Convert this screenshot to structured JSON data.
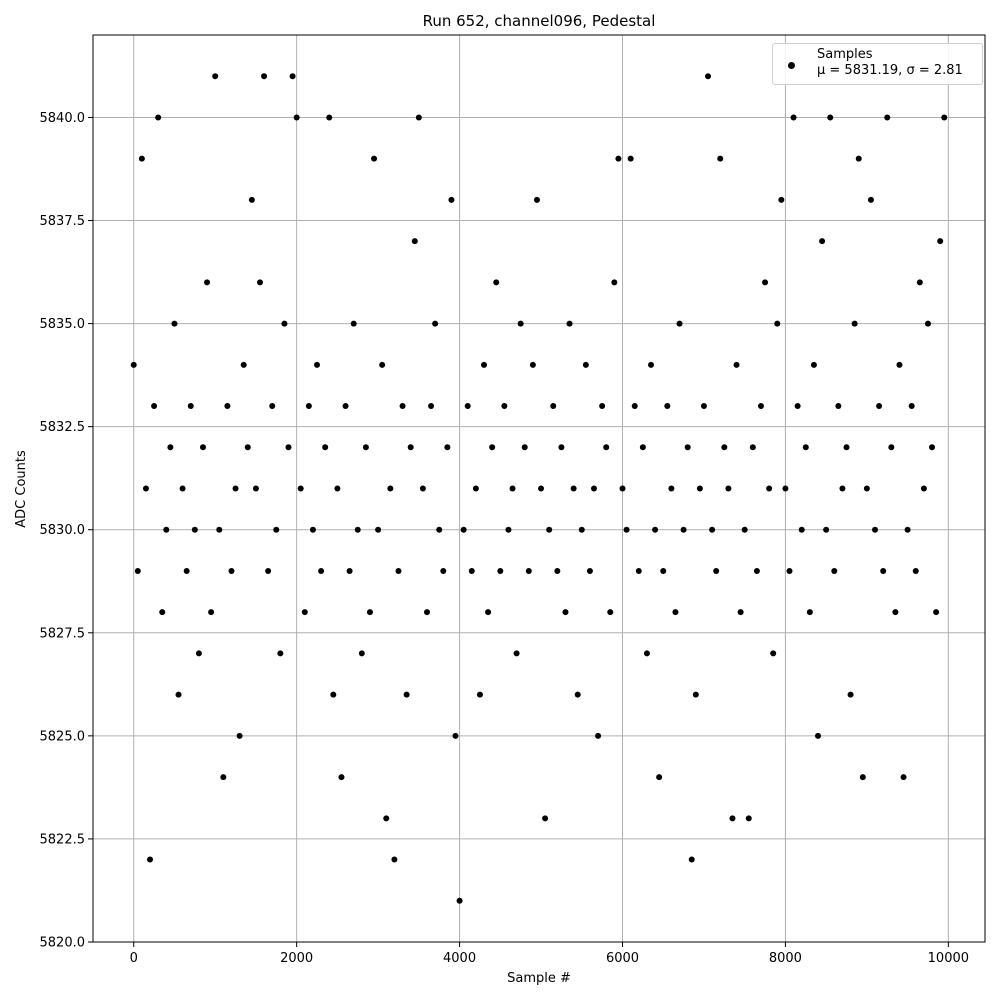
{
  "chart_data": {
    "type": "scatter",
    "title": "Run 652, channel096, Pedestal",
    "xlabel": "Sample #",
    "ylabel": "ADC Counts",
    "xlim": [
      -500,
      10450
    ],
    "xticks": [
      0,
      2000,
      4000,
      6000,
      8000,
      10000
    ],
    "ylim": [
      5820,
      5842
    ],
    "yticks": [
      {
        "value": 5820,
        "label": "5820.0"
      },
      5822.5,
      {
        "value": 5825,
        "label": "5825.0"
      },
      5827.5,
      {
        "value": 5830,
        "label": "5830.0"
      },
      5832.5,
      {
        "value": 5835,
        "label": "5835.0"
      },
      5837.5,
      {
        "value": 5840,
        "label": "5840.0"
      }
    ],
    "grid": true,
    "legend": "upper right",
    "series": [
      {
        "name": "Samples\nμ = 5831.19, σ = 2.81",
        "color": "#000000",
        "x": [
          0,
          50,
          100,
          150,
          200,
          250,
          300,
          350,
          400,
          450,
          500,
          550,
          600,
          650,
          700,
          750,
          800,
          850,
          900,
          950,
          1000,
          1050,
          1100,
          1150,
          1200,
          1250,
          1300,
          1350,
          1400,
          1450,
          1500,
          1550,
          1600,
          1650,
          1700,
          1750,
          1800,
          1850,
          1900,
          1950,
          2000,
          2050,
          2100,
          2150,
          2200,
          2250,
          2300,
          2350,
          2400,
          2450,
          2500,
          2550,
          2600,
          2650,
          2700,
          2750,
          2800,
          2850,
          2900,
          2950,
          3000,
          3050,
          3100,
          3150,
          3200,
          3250,
          3300,
          3350,
          3400,
          3450,
          3500,
          3550,
          3600,
          3650,
          3700,
          3750,
          3800,
          3850,
          3900,
          3950,
          4000,
          4050,
          4100,
          4150,
          4200,
          4250,
          4300,
          4350,
          4400,
          4450,
          4500,
          4550,
          4600,
          4650,
          4700,
          4750,
          4800,
          4850,
          4900,
          4950,
          5000,
          5050,
          5100,
          5150,
          5200,
          5250,
          5300,
          5350,
          5400,
          5450,
          5500,
          5550,
          5600,
          5650,
          5700,
          5750,
          5800,
          5850,
          5900,
          5950,
          6000,
          6050,
          6100,
          6150,
          6200,
          6250,
          6300,
          6350,
          6400,
          6450,
          6500,
          6550,
          6600,
          6650,
          6700,
          6750,
          6800,
          6850,
          6900,
          6950,
          7000,
          7050,
          7100,
          7150,
          7200,
          7250,
          7300,
          7350,
          7400,
          7450,
          7500,
          7550,
          7600,
          7650,
          7700,
          7750,
          7800,
          7850,
          7900,
          7950,
          8000,
          8050,
          8100,
          8150,
          8200,
          8250,
          8300,
          8350,
          8400,
          8450,
          8500,
          8550,
          8600,
          8650,
          8700,
          8750,
          8800,
          8850,
          8900,
          8950,
          9000,
          9050,
          9100,
          9150,
          9200,
          9250,
          9300,
          9350,
          9400,
          9450,
          9500,
          9550,
          9600,
          9650,
          9700,
          9750,
          9800,
          9850,
          9900,
          9950
        ],
        "values": [
          5834,
          5829,
          5839,
          5831,
          5822,
          5833,
          5840,
          5828,
          5830,
          5832,
          5835,
          5826,
          5831,
          5829,
          5833,
          5830,
          5827,
          5832,
          5836,
          5828,
          5841,
          5830,
          5824,
          5833,
          5829,
          5831,
          5825,
          5834,
          5832,
          5838,
          5831,
          5836,
          5841,
          5829,
          5833,
          5830,
          5827,
          5835,
          5832,
          5841,
          5840,
          5831,
          5828,
          5833,
          5830,
          5834,
          5829,
          5832,
          5840,
          5826,
          5831,
          5824,
          5833,
          5829,
          5835,
          5830,
          5827,
          5832,
          5828,
          5839,
          5830,
          5834,
          5823,
          5831,
          5822,
          5829,
          5833,
          5826,
          5832,
          5837,
          5840,
          5831,
          5828,
          5833,
          5835,
          5830,
          5829,
          5832,
          5838,
          5825,
          5821,
          5830,
          5833,
          5829,
          5831,
          5826,
          5834,
          5828,
          5832,
          5836,
          5829,
          5833,
          5830,
          5831,
          5827,
          5835,
          5832,
          5829,
          5834,
          5838,
          5831,
          5823,
          5830,
          5833,
          5829,
          5832,
          5828,
          5835,
          5831,
          5826,
          5830,
          5834,
          5829,
          5831,
          5825,
          5833,
          5832,
          5828,
          5836,
          5839,
          5831,
          5830,
          5839,
          5833,
          5829,
          5832,
          5827,
          5834,
          5830,
          5824,
          5829,
          5833,
          5831,
          5828,
          5835,
          5830,
          5832,
          5822,
          5826,
          5831,
          5833,
          5841,
          5830,
          5829,
          5839,
          5832,
          5831,
          5823,
          5834,
          5828,
          5830,
          5823,
          5832,
          5829,
          5833,
          5836,
          5831,
          5827,
          5835,
          5838,
          5831,
          5829,
          5840,
          5833,
          5830,
          5832,
          5828,
          5834,
          5825,
          5837,
          5830,
          5840,
          5829,
          5833,
          5831,
          5832,
          5826,
          5835,
          5839,
          5824,
          5831,
          5838,
          5830,
          5833,
          5829,
          5840,
          5832,
          5828,
          5834,
          5824,
          5830,
          5833,
          5829,
          5836,
          5831,
          5835,
          5832,
          5828,
          5837,
          5840
        ]
      }
    ]
  }
}
